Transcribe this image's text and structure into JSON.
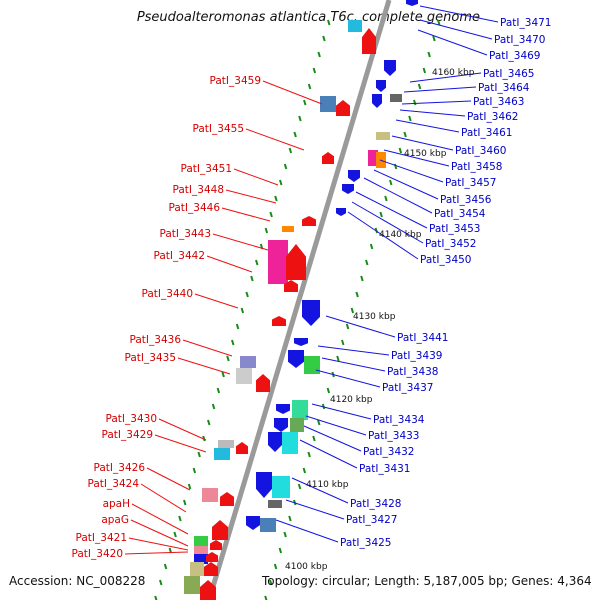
{
  "title": "Pseudoalteromonas atlantica T6c, complete genome",
  "accession_text": "Accession: NC_008228",
  "summary_text": "Topology: circular; Length: 5,187,005 bp; Genes: 4,364",
  "colors": {
    "forward_gene": "#ee1111",
    "reverse_gene": "#1414e0",
    "left_label": "#d40000",
    "right_label": "#0000c8",
    "backbone": "#9a9a9a",
    "ticks": "#1a8a1a"
  },
  "kbp_markers": [
    "4160 kbp",
    "4150 kbp",
    "4140 kbp",
    "4130 kbp",
    "4120 kbp",
    "4110 kbp",
    "4100 kbp"
  ],
  "left_labels": [
    "PatI_3459",
    "PatI_3455",
    "PatI_3451",
    "PatI_3448",
    "PatI_3446",
    "PatI_3443",
    "PatI_3442",
    "PatI_3440",
    "PatI_3436",
    "PatI_3435",
    "PatI_3430",
    "PatI_3429",
    "PatI_3426",
    "PatI_3424",
    "apaH",
    "apaG",
    "PatI_3421",
    "PatI_3420"
  ],
  "right_labels": [
    "PatI_3471",
    "PatI_3470",
    "PatI_3469",
    "PatI_3465",
    "PatI_3464",
    "PatI_3463",
    "PatI_3462",
    "PatI_3461",
    "PatI_3460",
    "PatI_3458",
    "PatI_3457",
    "PatI_3456",
    "PatI_3454",
    "PatI_3453",
    "PatI_3452",
    "PatI_3450",
    "PatI_3441",
    "PatI_3439",
    "PatI_3438",
    "PatI_3437",
    "PatI_3434",
    "PatI_3433",
    "PatI_3432",
    "PatI_3431",
    "PatI_3428",
    "PatI_3427",
    "PatI_3425"
  ]
}
